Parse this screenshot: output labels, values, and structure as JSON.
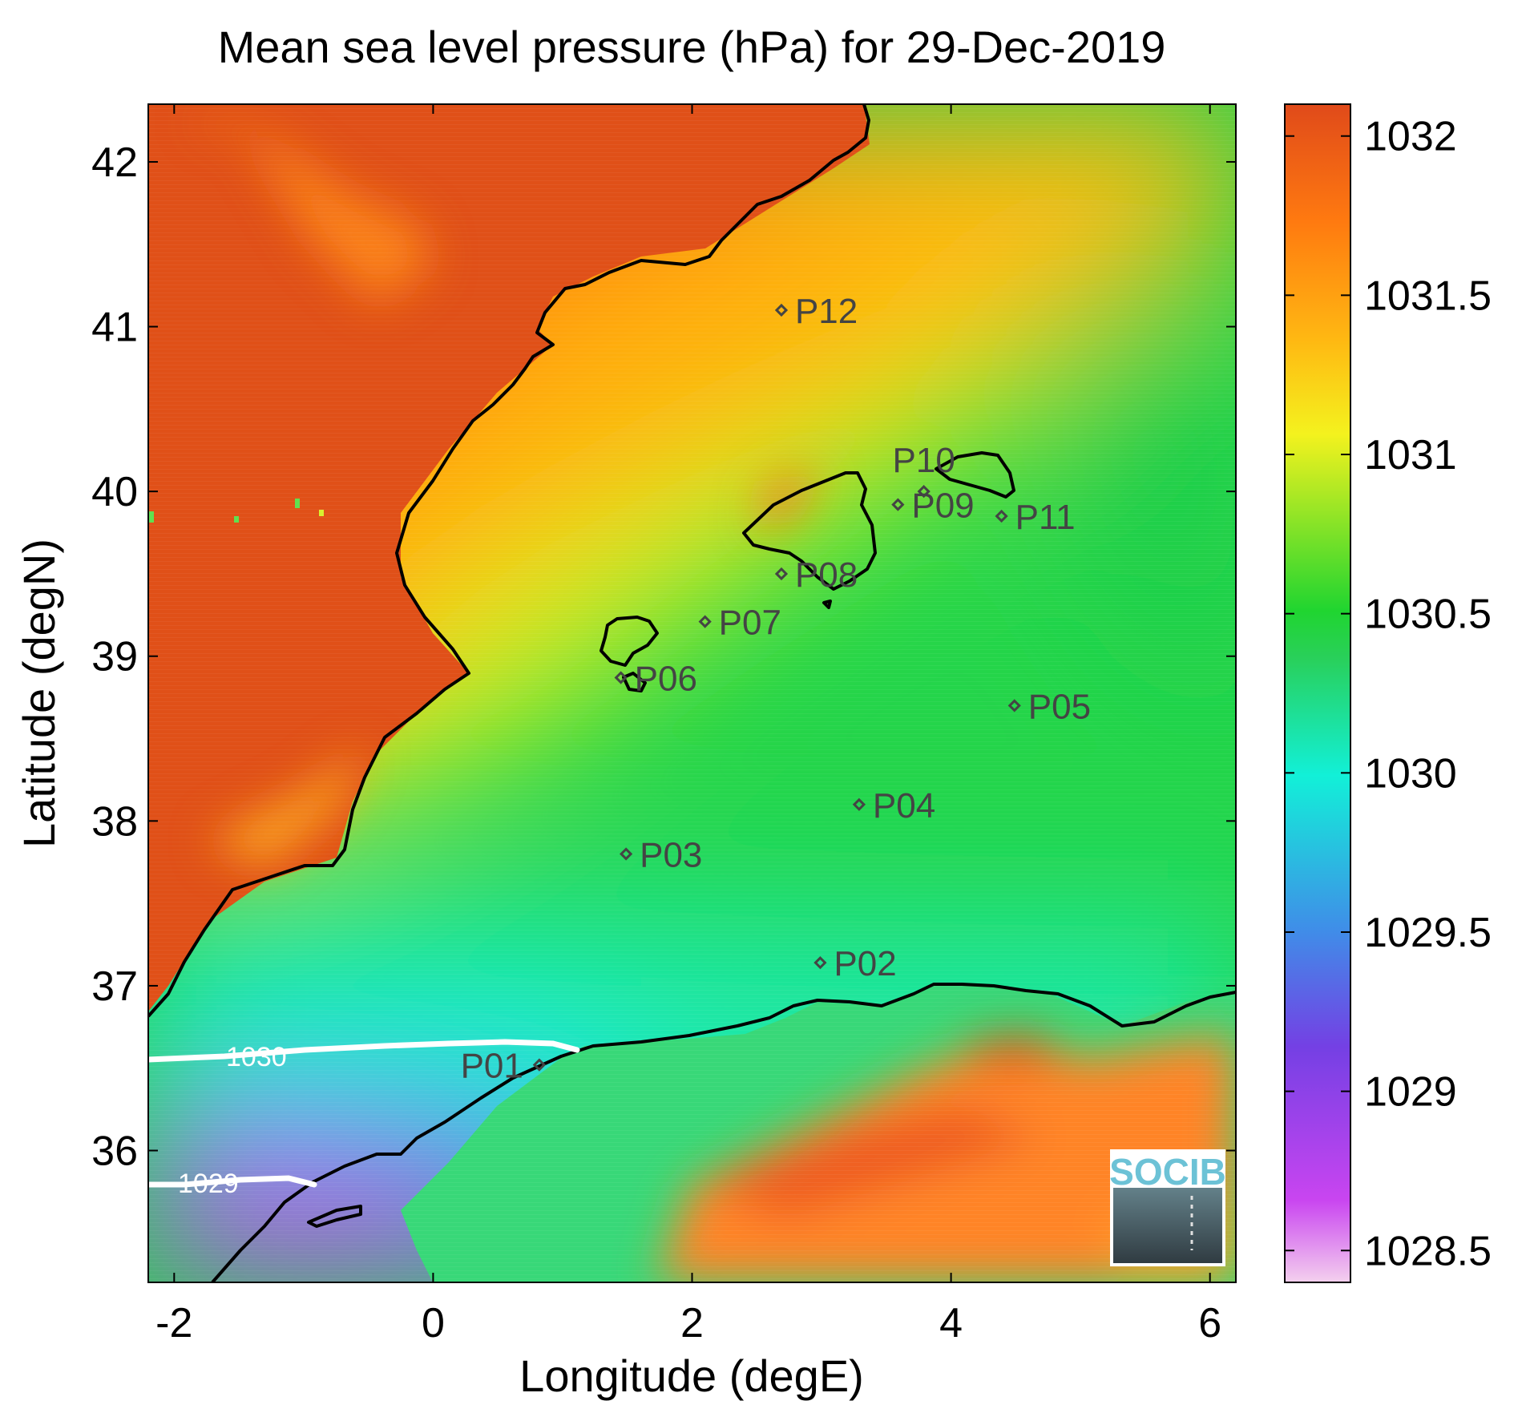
{
  "title": "Mean sea level pressure (hPa) for 29-Dec-2019",
  "x_axis": {
    "label": "Longitude (degE)",
    "range": [
      -2.2,
      6.2
    ],
    "ticks": [
      {
        "v": -2,
        "t": "-2"
      },
      {
        "v": 0,
        "t": "0"
      },
      {
        "v": 2,
        "t": "2"
      },
      {
        "v": 4,
        "t": "4"
      },
      {
        "v": 6,
        "t": "6"
      }
    ]
  },
  "y_axis": {
    "label": "Latitude (degN)",
    "range": [
      35.2,
      42.35
    ],
    "ticks": [
      {
        "v": 36,
        "t": "36"
      },
      {
        "v": 37,
        "t": "37"
      },
      {
        "v": 38,
        "t": "38"
      },
      {
        "v": 39,
        "t": "39"
      },
      {
        "v": 40,
        "t": "40"
      },
      {
        "v": 41,
        "t": "41"
      },
      {
        "v": 42,
        "t": "42"
      }
    ]
  },
  "colorbar": {
    "range": [
      1028.4,
      1032.1
    ],
    "ticks": [
      {
        "v": 1028.5,
        "t": "1028.5"
      },
      {
        "v": 1029,
        "t": "1029"
      },
      {
        "v": 1029.5,
        "t": "1029.5"
      },
      {
        "v": 1030,
        "t": "1030"
      },
      {
        "v": 1030.5,
        "t": "1030.5"
      },
      {
        "v": 1031,
        "t": "1031"
      },
      {
        "v": 1031.5,
        "t": "1031.5"
      },
      {
        "v": 1032,
        "t": "1032"
      }
    ],
    "colors": [
      "#f4d0ee",
      "#c945f0",
      "#7440e4",
      "#3f8ee8",
      "#12f0d8",
      "#29d05a",
      "#20d530",
      "#f4f21e",
      "#ffb812",
      "#ff7a10",
      "#e04a1a"
    ]
  },
  "contours": [
    {
      "value": 1030,
      "label": "1030"
    },
    {
      "value": 1029,
      "label": "1029"
    }
  ],
  "stations": [
    {
      "label": "P01",
      "lon": 0.82,
      "lat": 36.52
    },
    {
      "label": "P02",
      "lon": 2.99,
      "lat": 37.14
    },
    {
      "label": "P03",
      "lon": 1.49,
      "lat": 37.8
    },
    {
      "label": "P04",
      "lon": 3.29,
      "lat": 38.1
    },
    {
      "label": "P05",
      "lon": 4.49,
      "lat": 38.7
    },
    {
      "label": "P06",
      "lon": 1.45,
      "lat": 38.87
    },
    {
      "label": "P07",
      "lon": 2.1,
      "lat": 39.21
    },
    {
      "label": "P08",
      "lon": 2.69,
      "lat": 39.5
    },
    {
      "label": "P09",
      "lon": 3.59,
      "lat": 39.92
    },
    {
      "label": "P10",
      "lon": 3.79,
      "lat": 40.0
    },
    {
      "label": "P11",
      "lon": 4.39,
      "lat": 39.85
    },
    {
      "label": "P12",
      "lon": 2.69,
      "lat": 41.1
    }
  ],
  "logo": {
    "text": "SOCIB"
  }
}
